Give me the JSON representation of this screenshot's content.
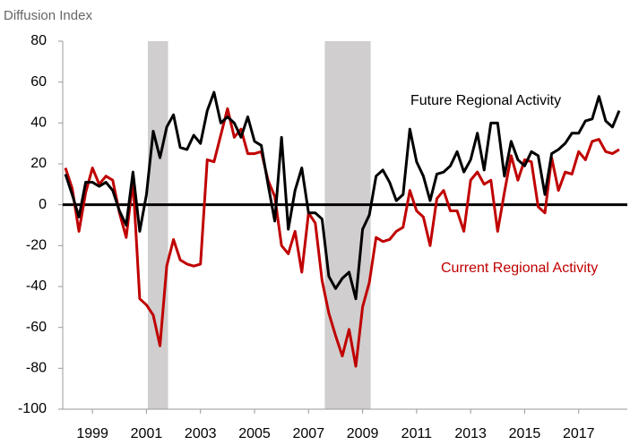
{
  "chart_data": {
    "type": "line",
    "y_axis_label": "Diffusion Index",
    "xlim": [
      1997.9,
      2018.8
    ],
    "ylim": [
      -100,
      80
    ],
    "yticks": [
      -100,
      -80,
      -60,
      -40,
      -20,
      0,
      20,
      40,
      60,
      80
    ],
    "xticks": [
      1999,
      2001,
      2003,
      2005,
      2007,
      2009,
      2011,
      2013,
      2015,
      2017
    ],
    "grid": false,
    "shaded_regions": [
      [
        2001.05,
        2001.8
      ],
      [
        2007.6,
        2009.3
      ]
    ],
    "x": [
      1998,
      1998.25,
      1998.5,
      1998.75,
      1999,
      1999.25,
      1999.5,
      1999.75,
      2000,
      2000.25,
      2000.5,
      2000.75,
      2001,
      2001.25,
      2001.5,
      2001.75,
      2002,
      2002.25,
      2002.5,
      2002.75,
      2003,
      2003.25,
      2003.5,
      2003.75,
      2004,
      2004.25,
      2004.5,
      2004.75,
      2005,
      2005.25,
      2005.5,
      2005.75,
      2006,
      2006.25,
      2006.5,
      2006.75,
      2007,
      2007.25,
      2007.5,
      2007.75,
      2008,
      2008.25,
      2008.5,
      2008.75,
      2009,
      2009.25,
      2009.5,
      2009.75,
      2010,
      2010.25,
      2010.5,
      2010.75,
      2011,
      2011.25,
      2011.5,
      2011.75,
      2012,
      2012.25,
      2012.5,
      2012.75,
      2013,
      2013.25,
      2013.5,
      2013.75,
      2014,
      2014.25,
      2014.5,
      2014.75,
      2015,
      2015.25,
      2015.5,
      2015.75,
      2016,
      2016.25,
      2016.5,
      2016.75,
      2017,
      2017.25,
      2017.5,
      2017.75,
      2018,
      2018.25,
      2018.5
    ],
    "series": [
      {
        "name": "Future Regional Activity",
        "color": "#000000",
        "values": [
          15,
          5,
          -6,
          11,
          11,
          9,
          11,
          7,
          -3,
          -10,
          16,
          -13,
          5,
          36,
          23,
          38,
          44,
          28,
          27,
          34,
          30,
          46,
          55,
          40,
          43,
          40,
          33,
          43,
          31,
          29,
          10,
          -8,
          33,
          -12,
          7,
          18,
          -4,
          -4,
          -7,
          -35,
          -41,
          -36,
          -33,
          -46,
          -12,
          -5,
          14,
          17,
          11,
          2,
          5,
          37,
          21,
          14,
          2,
          15,
          16,
          19,
          26,
          16,
          22,
          35,
          17,
          40,
          40,
          14,
          31,
          22,
          19,
          26,
          24,
          5,
          25,
          27,
          30,
          35,
          35,
          41,
          42,
          53,
          41,
          38,
          46
        ]
      },
      {
        "name": "Current Regional Activity",
        "color": "#c00000",
        "values": [
          18,
          8,
          -13,
          6,
          18,
          10,
          14,
          12,
          -4,
          -16,
          12,
          -46,
          -49,
          -54,
          -69,
          -30,
          -17,
          -27,
          -29,
          -30,
          -29,
          22,
          21,
          34,
          47,
          33,
          37,
          25,
          25,
          26,
          12,
          4,
          -20,
          -24,
          -13,
          -33,
          -4,
          -9,
          -37,
          -53,
          -64,
          -74,
          -61,
          -79,
          -50,
          -38,
          -16,
          -18,
          -17,
          -13,
          -11,
          7,
          -3,
          -6,
          -20,
          3,
          7,
          -3,
          -3,
          -13,
          12,
          16,
          10,
          12,
          -13,
          6,
          24,
          12,
          22,
          21,
          -1,
          -4,
          23,
          7,
          16,
          15,
          26,
          22,
          31,
          32,
          26,
          25,
          27
        ]
      }
    ]
  }
}
